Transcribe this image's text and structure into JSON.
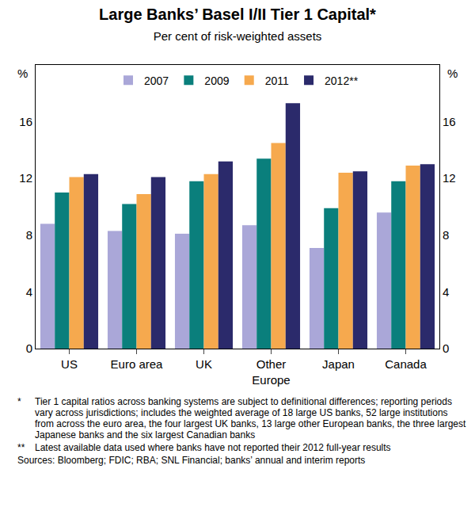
{
  "chart_data": {
    "type": "bar",
    "title": "Large Banks’ Basel I/II Tier 1 Capital*",
    "subtitle": "Per cent of risk-weighted assets",
    "ylabel": "%",
    "categories": [
      "US",
      "Euro area",
      "UK",
      "Other\nEurope",
      "Japan",
      "Canada"
    ],
    "series": [
      {
        "name": "2007",
        "color": "#aaa7d8",
        "values": [
          8.8,
          8.3,
          8.1,
          8.7,
          7.1,
          9.6
        ]
      },
      {
        "name": "2009",
        "color": "#0a7f7c",
        "values": [
          11.0,
          10.2,
          11.8,
          13.4,
          9.9,
          11.8
        ]
      },
      {
        "name": "2011",
        "color": "#f6a94e",
        "values": [
          12.1,
          10.9,
          12.3,
          14.5,
          12.4,
          12.9
        ]
      },
      {
        "name": "2012**",
        "color": "#2b2a6b",
        "values": [
          12.3,
          12.1,
          13.2,
          17.3,
          12.5,
          13.0
        ]
      }
    ],
    "ylim": [
      0,
      20
    ],
    "yticks": [
      0,
      4,
      8,
      12,
      16
    ],
    "grid": false,
    "legend": "top",
    "notes": [
      {
        "mark": "*",
        "text": "Tier 1 capital ratios across banking systems are subject to definitional differences; reporting periods vary across jurisdictions; includes the weighted average of 18 large US banks, 52 large institutions from across the euro area, the four largest UK banks, 13 large other European banks, the three largest Japanese banks and the six largest Canadian banks"
      },
      {
        "mark": "**",
        "text": "Latest available data used where banks have not reported their 2012 full-year results"
      }
    ],
    "sources": "Sources: Bloomberg; FDIC; RBA; SNL Financial; banks’ annual and interim reports"
  }
}
